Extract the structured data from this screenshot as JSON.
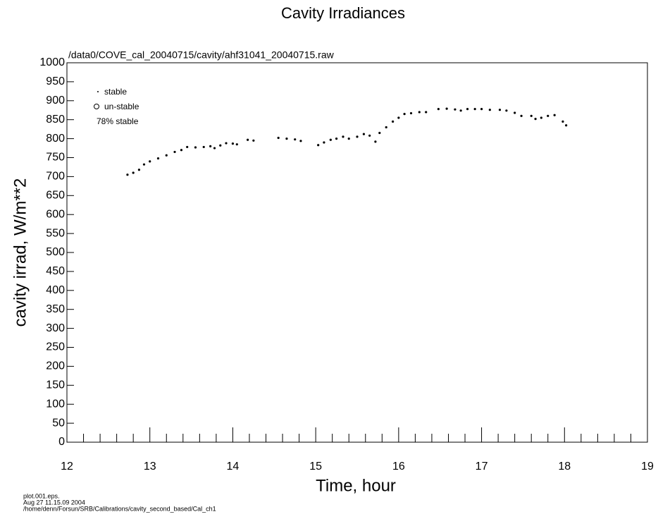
{
  "chart_data": {
    "type": "scatter",
    "title": "Cavity Irradiances",
    "subtitle": "/data0/COVE_cal_20040715/cavity/ahf31041_20040715.raw",
    "x_label": "Time, hour",
    "y_label": "cavity irrad, W/m**2",
    "legend": [
      "stable",
      "un-stable"
    ],
    "annotation": "78% stable",
    "footer": [
      "plot.001.eps.",
      "Aug 27 11.15.09 2004",
      "/home/denn/Forsun/SRB/Calibrations/cavity_second_based/Cal_ch1"
    ],
    "xlim": [
      12,
      19
    ],
    "ylim": [
      0,
      1000
    ],
    "xticks": [
      12,
      13,
      14,
      15,
      16,
      17,
      18,
      19
    ],
    "minor_xticks": [
      12.2,
      12.4,
      12.6,
      12.8,
      13.2,
      13.4,
      13.6,
      13.8,
      14.2,
      14.4,
      14.6,
      14.8,
      15.2,
      15.4,
      15.6,
      15.8,
      16.2,
      16.4,
      16.6,
      16.8,
      17.2,
      17.4,
      17.6,
      17.8,
      18.2,
      18.4,
      18.6,
      18.8
    ],
    "yticks": [
      0,
      50,
      100,
      150,
      200,
      250,
      300,
      350,
      400,
      450,
      500,
      550,
      600,
      650,
      700,
      750,
      800,
      850,
      900,
      950,
      1000
    ],
    "color": "#000000",
    "x": [
      12.73,
      12.8,
      12.87,
      12.93,
      13.0,
      13.1,
      13.2,
      13.3,
      13.38,
      13.45,
      13.55,
      13.65,
      13.73,
      13.78,
      13.85,
      13.92,
      14.0,
      14.05,
      14.18,
      14.25,
      14.55,
      14.65,
      14.75,
      14.82,
      15.03,
      15.1,
      15.18,
      15.25,
      15.33,
      15.4,
      15.5,
      15.58,
      15.65,
      15.72,
      15.77,
      15.85,
      15.93,
      16.0,
      16.07,
      16.15,
      16.25,
      16.33,
      16.48,
      16.58,
      16.68,
      16.75,
      16.83,
      16.92,
      17.0,
      17.1,
      17.22,
      17.3,
      17.4,
      17.48,
      17.6,
      17.65,
      17.72,
      17.8,
      17.88,
      17.98,
      18.02
    ],
    "values": [
      705,
      710,
      718,
      732,
      740,
      748,
      756,
      765,
      770,
      778,
      777,
      778,
      780,
      775,
      782,
      788,
      787,
      785,
      797,
      795,
      802,
      800,
      798,
      794,
      783,
      790,
      797,
      800,
      805,
      800,
      805,
      812,
      808,
      792,
      815,
      830,
      845,
      855,
      865,
      867,
      870,
      870,
      878,
      879,
      877,
      874,
      878,
      878,
      878,
      876,
      876,
      874,
      868,
      860,
      860,
      852,
      855,
      860,
      862,
      845,
      835
    ]
  }
}
